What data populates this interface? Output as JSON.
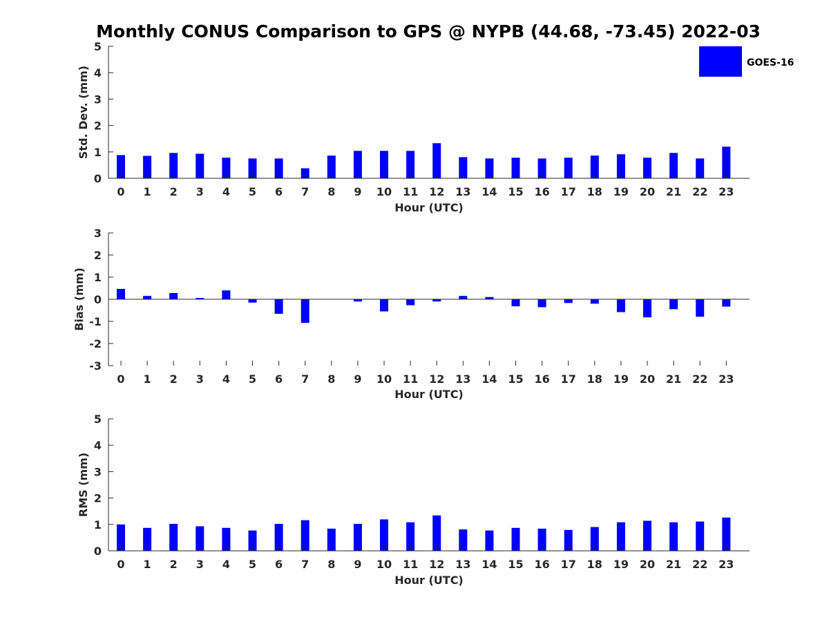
{
  "figure": {
    "title": "Monthly CONUS Comparison to GPS @ NYPB (44.68, -73.45) 2022-03",
    "bar_color": "#0000ff",
    "axis_color": "#262626"
  },
  "legend": {
    "label": "GOES-16",
    "placement": "top-right"
  },
  "chart_data": [
    {
      "type": "bar",
      "xlabel": "Hour (UTC)",
      "ylabel": "Std. Dev. (mm)",
      "ylim": [
        0,
        5
      ],
      "yticks": [
        0,
        1,
        2,
        3,
        4,
        5
      ],
      "categories": [
        "0",
        "1",
        "2",
        "3",
        "4",
        "5",
        "6",
        "7",
        "8",
        "9",
        "10",
        "11",
        "12",
        "13",
        "14",
        "15",
        "16",
        "17",
        "18",
        "19",
        "20",
        "21",
        "22",
        "23"
      ],
      "series": [
        {
          "name": "GOES-16",
          "values": [
            0.88,
            0.85,
            0.96,
            0.93,
            0.78,
            0.75,
            0.75,
            0.38,
            0.86,
            1.04,
            1.04,
            1.04,
            1.33,
            0.8,
            0.75,
            0.78,
            0.75,
            0.78,
            0.86,
            0.91,
            0.78,
            0.96,
            0.75,
            1.2
          ]
        }
      ],
      "grid": false
    },
    {
      "type": "bar",
      "xlabel": "Hour (UTC)",
      "ylabel": "Bias (mm)",
      "ylim": [
        -3,
        3
      ],
      "yticks": [
        -3,
        -2,
        -1,
        0,
        1,
        2,
        3
      ],
      "categories": [
        "0",
        "1",
        "2",
        "3",
        "4",
        "5",
        "6",
        "7",
        "8",
        "9",
        "10",
        "11",
        "12",
        "13",
        "14",
        "15",
        "16",
        "17",
        "18",
        "19",
        "20",
        "21",
        "22",
        "23"
      ],
      "series": [
        {
          "name": "GOES-16",
          "values": [
            0.47,
            0.15,
            0.28,
            0.06,
            0.4,
            -0.15,
            -0.66,
            -1.07,
            0.0,
            -0.1,
            -0.55,
            -0.27,
            -0.1,
            0.15,
            0.1,
            -0.32,
            -0.36,
            -0.17,
            -0.2,
            -0.58,
            -0.82,
            -0.45,
            -0.79,
            -0.33
          ]
        }
      ],
      "grid": false
    },
    {
      "type": "bar",
      "xlabel": "Hour (UTC)",
      "ylabel": "RMS (mm)",
      "ylim": [
        0,
        5
      ],
      "yticks": [
        0,
        1,
        2,
        3,
        4,
        5
      ],
      "categories": [
        "0",
        "1",
        "2",
        "3",
        "4",
        "5",
        "6",
        "7",
        "8",
        "9",
        "10",
        "11",
        "12",
        "13",
        "14",
        "15",
        "16",
        "17",
        "18",
        "19",
        "20",
        "21",
        "22",
        "23"
      ],
      "series": [
        {
          "name": "GOES-16",
          "values": [
            1.0,
            0.87,
            1.02,
            0.93,
            0.87,
            0.77,
            1.02,
            1.16,
            0.84,
            1.02,
            1.19,
            1.08,
            1.34,
            0.81,
            0.77,
            0.87,
            0.84,
            0.79,
            0.9,
            1.08,
            1.14,
            1.08,
            1.11,
            1.26
          ]
        }
      ],
      "grid": false
    }
  ]
}
